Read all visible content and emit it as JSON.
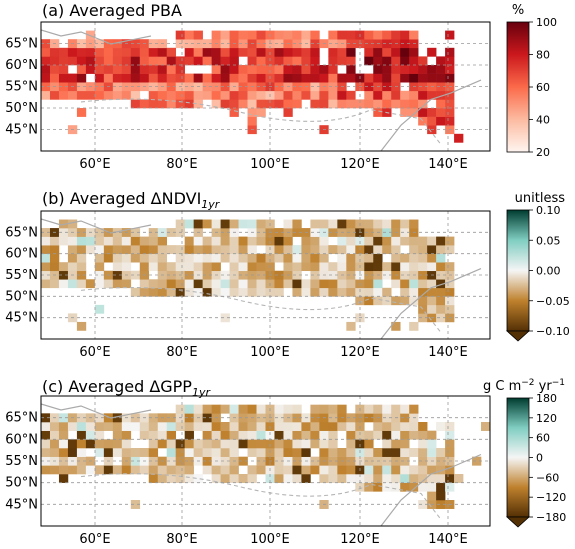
{
  "chart_data": [
    {
      "type": "heatmap",
      "title": "(a) Averaged PBA",
      "title_parts": {
        "main": "(a) Averaged PBA",
        "sub": ""
      },
      "colorbar": {
        "unit": "%",
        "ticks": [
          "100",
          "80",
          "60",
          "40",
          "20"
        ],
        "range": [
          20,
          100
        ],
        "colors": [
          "#fff5f0",
          "#fcbba1",
          "#fb6a4a",
          "#cb181d",
          "#67000d"
        ],
        "extend": "none"
      },
      "xticks": [
        "60°E",
        "80°E",
        "100°E",
        "120°E",
        "140°E"
      ],
      "yticks": [
        "65°N",
        "60°N",
        "55°N",
        "50°N",
        "45°N"
      ],
      "xlim": [
        50,
        150
      ],
      "ylim": [
        40,
        70
      ],
      "grid": true
    },
    {
      "type": "heatmap",
      "title": "(b) Averaged ΔNDVI1yr",
      "title_parts": {
        "main": "(b) Averaged ΔNDVI",
        "sub": "1yr"
      },
      "colorbar": {
        "unit": "unitless",
        "ticks": [
          "0.10",
          "0.05",
          "0.00",
          "−0.05",
          "−0.10"
        ],
        "range": [
          -0.1,
          0.1
        ],
        "colors": [
          "#543005",
          "#bf812d",
          "#f5f5f5",
          "#80cdc1",
          "#003c30"
        ],
        "extend": "min"
      },
      "xticks": [
        "60°E",
        "80°E",
        "100°E",
        "120°E",
        "140°E"
      ],
      "yticks": [
        "65°N",
        "60°N",
        "55°N",
        "50°N",
        "45°N"
      ],
      "xlim": [
        50,
        150
      ],
      "ylim": [
        40,
        70
      ],
      "grid": true
    },
    {
      "type": "heatmap",
      "title": "(c) Averaged ΔGPP1yr",
      "title_parts": {
        "main": "(c) Averaged ΔGPP",
        "sub": "1yr"
      },
      "colorbar": {
        "unit": "g C m−2 yr−1",
        "ticks": [
          "180",
          "120",
          "60",
          "0",
          "−60",
          "−120",
          "−180"
        ],
        "range": [
          -180,
          180
        ],
        "colors": [
          "#543005",
          "#bf812d",
          "#f5f5f5",
          "#80cdc1",
          "#003c30"
        ],
        "extend": "min"
      },
      "xticks": [
        "60°E",
        "80°E",
        "100°E",
        "120°E",
        "140°E"
      ],
      "yticks": [
        "65°N",
        "60°N",
        "55°N",
        "50°N",
        "45°N"
      ],
      "xlim": [
        50,
        150
      ],
      "ylim": [
        40,
        70
      ],
      "grid": true
    }
  ]
}
